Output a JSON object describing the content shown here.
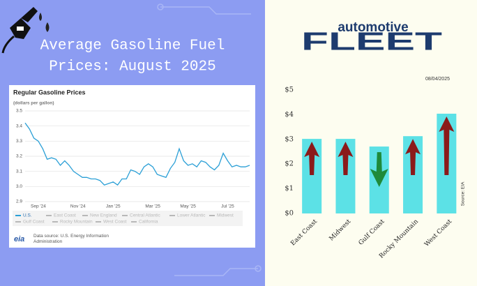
{
  "header": {
    "title_line1": "Average Gasoline Fuel",
    "title_line2": "Prices: August 2025"
  },
  "brand": {
    "line1": "automotive",
    "line2": "FLEET"
  },
  "chart_data": [
    {
      "type": "line",
      "title": "Regular Gasoline Prices",
      "subtitle": "(dollars per gallon)",
      "categories": [
        null,
        null,
        null,
        "Sep '24",
        null,
        null,
        null,
        null,
        null,
        null,
        null,
        null,
        "Nov '24",
        null,
        null,
        null,
        null,
        null,
        null,
        null,
        "Jan '25",
        null,
        null,
        null,
        null,
        null,
        null,
        null,
        null,
        "Mar '25",
        null,
        null,
        null,
        null,
        null,
        null,
        null,
        "May '25",
        null,
        null,
        null,
        null,
        null,
        null,
        null,
        null,
        "Jul '25",
        null,
        null,
        null,
        null,
        null
      ],
      "series": [
        {
          "name": "U.S.",
          "color": "#2a9fd6",
          "values": [
            3.42,
            3.38,
            3.32,
            3.3,
            3.25,
            3.18,
            3.19,
            3.18,
            3.14,
            3.17,
            3.14,
            3.1,
            3.08,
            3.06,
            3.06,
            3.05,
            3.05,
            3.04,
            3.01,
            3.02,
            3.03,
            3.01,
            3.05,
            3.05,
            3.11,
            3.1,
            3.08,
            3.13,
            3.15,
            3.13,
            3.08,
            3.07,
            3.06,
            3.12,
            3.16,
            3.25,
            3.17,
            3.14,
            3.15,
            3.13,
            3.17,
            3.16,
            3.13,
            3.11,
            3.14,
            3.22,
            3.17,
            3.13,
            3.14,
            3.13,
            3.13,
            3.14
          ]
        }
      ],
      "other_regions": [
        "East Coast",
        "New England",
        "Central Atlantic",
        "Lower Atlantic",
        "Midwest",
        "Gulf Coast",
        "Rocky Mountain",
        "West Coast",
        "California"
      ],
      "other_color": "#b8b8b8",
      "ylim": [
        2.9,
        3.5
      ],
      "yticks": [
        2.9,
        {
          "value": 3,
          "label": "3.0"
        },
        3.1,
        3.2,
        3.3,
        3.4,
        3.5
      ],
      "grid": true,
      "logo": "eia",
      "source": "Data source: U.S. Energy Information Administration"
    },
    {
      "type": "bar",
      "date": "08/04/2025",
      "categories": [
        "East Coast",
        "Midwest",
        "Gulf Coast",
        "Rocky Mountain",
        "West Coast"
      ],
      "values": [
        3.02,
        3.02,
        2.71,
        3.13,
        4.04
      ],
      "color": "#5ce1e6",
      "trend": [
        "up",
        "up",
        "down",
        "up",
        "up"
      ],
      "up_color": "#8b1a1a",
      "down_color": "#1f8a3a",
      "ylim": [
        0,
        5
      ],
      "yticks": [
        {
          "value": 0,
          "label": "$0"
        },
        {
          "value": 1,
          "label": "$1"
        },
        {
          "value": 2,
          "label": "$2"
        },
        {
          "value": 3,
          "label": "$3"
        },
        {
          "value": 4,
          "label": "$4"
        },
        {
          "value": 5,
          "label": "$5"
        }
      ],
      "source": "Source: EIA"
    }
  ]
}
